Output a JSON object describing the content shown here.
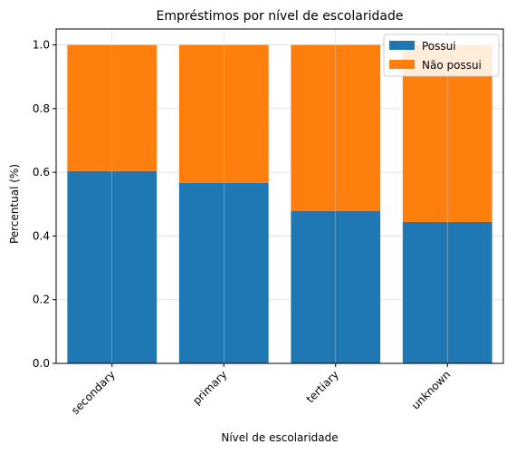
{
  "chart_data": {
    "type": "bar",
    "stacked": true,
    "title": "Empréstimos por nível de escolaridade",
    "xlabel": "Nível de escolaridade",
    "ylabel": "Percentual (%)",
    "categories": [
      "secondary",
      "primary",
      "tertiary",
      "unknown"
    ],
    "series": [
      {
        "name": "Possui",
        "values": [
          0.604,
          0.567,
          0.479,
          0.444
        ],
        "color": "#1f77b4"
      },
      {
        "name": "Não possui",
        "values": [
          0.396,
          0.433,
          0.521,
          0.556
        ],
        "color": "#ff7f0e"
      }
    ],
    "ylim": [
      0,
      1.05
    ],
    "yticks": [
      "0.0",
      "0.2",
      "0.4",
      "0.6",
      "0.8",
      "1.0"
    ],
    "grid": true,
    "legend_position": "top-right"
  }
}
